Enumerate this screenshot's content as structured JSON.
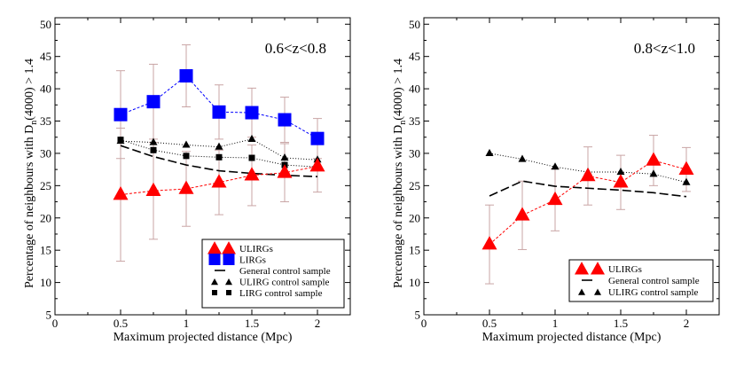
{
  "chart_data": [
    {
      "type": "line",
      "annotation": "0.6<z<0.8",
      "xlabel": "Maximum projected distance (Mpc)",
      "ylabel": "Percentage of neighbours with D",
      "ylabel_sub": "n",
      "ylabel_tail": "(4000) > 1.4",
      "xlim": [
        0,
        2.25
      ],
      "ylim": [
        5,
        51
      ],
      "xticks": [
        0,
        0.5,
        1,
        1.5,
        2
      ],
      "xtick_labels": [
        "0",
        "0.5",
        "1",
        "1.5",
        "2"
      ],
      "yticks": [
        5,
        10,
        15,
        20,
        25,
        30,
        35,
        40,
        45,
        50
      ],
      "ytick_labels": [
        "5",
        "10",
        "15",
        "20",
        "25",
        "30",
        "35",
        "40",
        "45",
        "50"
      ],
      "x": [
        0.5,
        0.75,
        1.0,
        1.25,
        1.5,
        1.75,
        2.0
      ],
      "series": [
        {
          "name": "ULIRGs",
          "style": "big-triangle-red",
          "color": "#ff0000",
          "values": [
            23.6,
            24.2,
            24.5,
            25.5,
            26.6,
            27.0,
            28.0
          ],
          "err": [
            10.3,
            7.5,
            5.8,
            5.0,
            4.7,
            4.5,
            4.0
          ]
        },
        {
          "name": "LIRGs",
          "style": "big-square-blue",
          "color": "#0000ff",
          "values": [
            36.0,
            38.0,
            42.0,
            36.4,
            36.3,
            35.2,
            32.3
          ],
          "err": [
            6.8,
            5.8,
            4.8,
            4.2,
            3.8,
            3.5,
            3.1
          ]
        },
        {
          "name": "General control sample",
          "style": "dash-black",
          "color": "#000000",
          "values": [
            31.2,
            29.5,
            28.2,
            27.3,
            26.9,
            26.6,
            26.4
          ]
        },
        {
          "name": "ULIRG control sample",
          "style": "small-triangle-black",
          "color": "#000000",
          "values": [
            31.9,
            31.7,
            31.3,
            31.0,
            32.2,
            29.3,
            29.0
          ]
        },
        {
          "name": "LIRG control sample",
          "style": "small-square-black",
          "color": "#000000",
          "values": [
            32.1,
            30.5,
            29.6,
            29.4,
            29.3,
            28.2,
            27.9
          ]
        }
      ],
      "legend_position": "bottom-right"
    },
    {
      "type": "line",
      "annotation": "0.8<z<1.0",
      "xlabel": "Maximum projected distance (Mpc)",
      "ylabel": "Percentage of neighbours with D",
      "ylabel_sub": "n",
      "ylabel_tail": "(4000) > 1.4",
      "xlim": [
        0,
        2.25
      ],
      "ylim": [
        5,
        51
      ],
      "xticks": [
        0,
        0.5,
        1,
        1.5,
        2
      ],
      "xtick_labels": [
        "0",
        "0.5",
        "1",
        "1.5",
        "2"
      ],
      "yticks": [
        5,
        10,
        15,
        20,
        25,
        30,
        35,
        40,
        45,
        50
      ],
      "ytick_labels": [
        "5",
        "10",
        "15",
        "20",
        "25",
        "30",
        "35",
        "40",
        "45",
        "50"
      ],
      "x": [
        0.5,
        0.75,
        1.0,
        1.25,
        1.5,
        1.75,
        2.0
      ],
      "series": [
        {
          "name": "ULIRGs",
          "style": "big-triangle-red",
          "color": "#ff0000",
          "values": [
            15.9,
            20.4,
            22.8,
            26.5,
            25.5,
            28.9,
            27.5
          ],
          "err": [
            6.1,
            5.3,
            4.8,
            4.5,
            4.2,
            3.9,
            3.4
          ]
        },
        {
          "name": "General control sample",
          "style": "dash-black",
          "color": "#000000",
          "values": [
            23.4,
            25.7,
            24.9,
            24.6,
            24.3,
            23.9,
            23.3
          ]
        },
        {
          "name": "ULIRG control sample",
          "style": "small-triangle-black",
          "color": "#000000",
          "values": [
            30.0,
            29.1,
            27.9,
            27.1,
            27.1,
            26.8,
            25.5
          ]
        }
      ],
      "legend_position": "bottom-right"
    }
  ]
}
